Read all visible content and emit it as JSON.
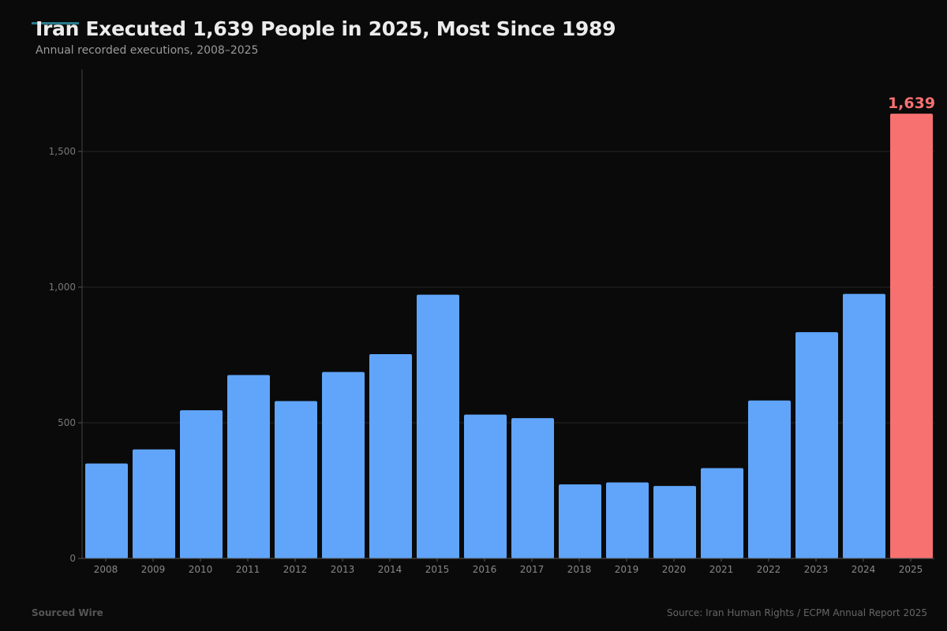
{
  "chart_data": {
    "type": "bar",
    "title": "Iran Executed 1,639 People in 2025, Most Since 1989",
    "subtitle": "Annual recorded executions, 2008–2025",
    "categories": [
      "2008",
      "2009",
      "2010",
      "2011",
      "2012",
      "2013",
      "2014",
      "2015",
      "2016",
      "2017",
      "2018",
      "2019",
      "2020",
      "2021",
      "2022",
      "2023",
      "2024",
      "2025"
    ],
    "values": [
      350,
      402,
      546,
      676,
      580,
      687,
      753,
      972,
      530,
      517,
      273,
      280,
      267,
      333,
      582,
      834,
      975,
      1639
    ],
    "ylim": [
      0,
      1800
    ],
    "yticks": [
      0,
      500,
      1000,
      1500
    ],
    "ytick_labels": [
      "0",
      "500",
      "1,000",
      "1,500"
    ],
    "grid": true,
    "highlight": {
      "category": "2025",
      "label": "1,639"
    },
    "colors": {
      "bar": "#60a5fa",
      "highlight": "#f87171",
      "accent": "#2a7a8c"
    }
  },
  "footer": {
    "brand": "Sourced Wire",
    "source": "Source: Iran Human Rights / ECPM Annual Report 2025"
  }
}
